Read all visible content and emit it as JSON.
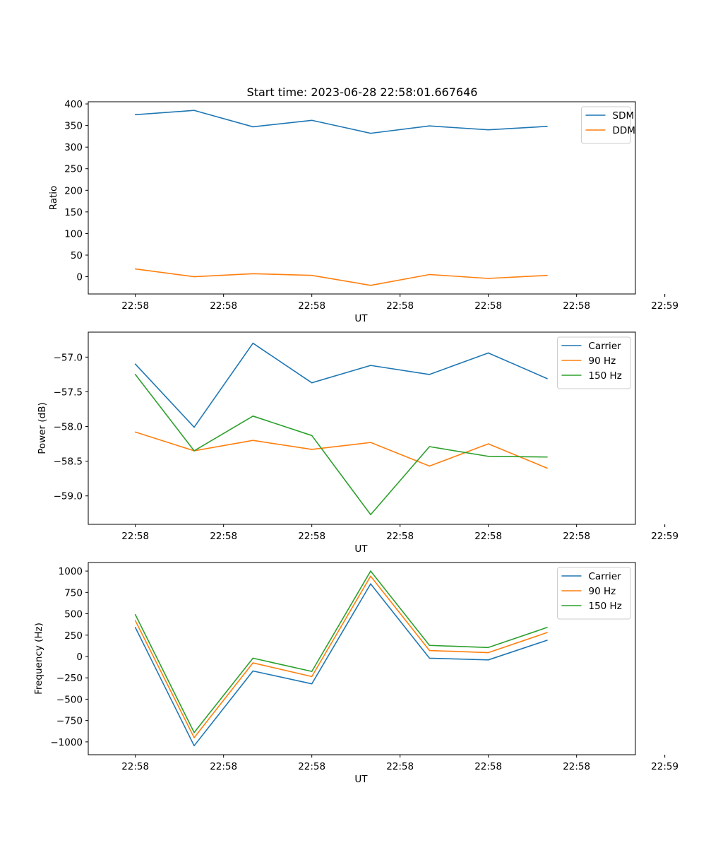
{
  "figure": {
    "title": "Start time: 2023-06-28 22:58:01.667646"
  },
  "chart_data": [
    {
      "type": "line",
      "title": "Start time: 2023-06-28 22:58:01.667646",
      "xlabel": "UT",
      "ylabel": "Ratio",
      "x_tick_labels": [
        "22:58",
        "22:58",
        "22:58",
        "22:58",
        "22:58",
        "22:58",
        "22:59"
      ],
      "xlim": [
        -0.8,
        8.5
      ],
      "ylim": [
        -40,
        405
      ],
      "y_ticks": [
        0,
        50,
        100,
        150,
        200,
        250,
        300,
        350,
        400
      ],
      "grid": false,
      "legend_position": "top-right",
      "series": [
        {
          "name": "SDM",
          "color": "#1f77b4",
          "values": [
            375,
            385,
            347,
            362,
            332,
            349,
            340,
            348
          ]
        },
        {
          "name": "DDM",
          "color": "#ff7f0e",
          "values": [
            18,
            0,
            7,
            3,
            -20,
            5,
            -4,
            3
          ]
        }
      ]
    },
    {
      "type": "line",
      "xlabel": "UT",
      "ylabel": "Power (dB)",
      "x_tick_labels": [
        "22:58",
        "22:58",
        "22:58",
        "22:58",
        "22:58",
        "22:58",
        "22:59"
      ],
      "xlim": [
        -0.8,
        8.5
      ],
      "ylim": [
        -59.41,
        -56.64
      ],
      "y_ticks": [
        -59.0,
        -58.5,
        -58.0,
        -57.5,
        -57.0
      ],
      "y_tick_labels": [
        "−59.0",
        "−58.5",
        "−58.0",
        "−57.5",
        "−57.0"
      ],
      "grid": false,
      "legend_position": "top-right",
      "series": [
        {
          "name": "Carrier",
          "color": "#1f77b4",
          "values": [
            -57.1,
            -58.01,
            -56.8,
            -57.37,
            -57.12,
            -57.25,
            -56.94,
            -57.31
          ]
        },
        {
          "name": "90 Hz",
          "color": "#ff7f0e",
          "values": [
            -58.08,
            -58.35,
            -58.2,
            -58.33,
            -58.23,
            -58.57,
            -58.25,
            -58.6
          ]
        },
        {
          "name": "150 Hz",
          "color": "#2ca02c",
          "values": [
            -57.25,
            -58.35,
            -57.85,
            -58.13,
            -59.27,
            -58.29,
            -58.43,
            -58.44
          ]
        }
      ]
    },
    {
      "type": "line",
      "xlabel": "UT",
      "ylabel": "Frequency (Hz)",
      "x_tick_labels": [
        "22:58",
        "22:58",
        "22:58",
        "22:58",
        "22:58",
        "22:58",
        "22:59"
      ],
      "xlim": [
        -0.8,
        8.5
      ],
      "ylim": [
        -1150,
        1100
      ],
      "y_ticks": [
        -1000,
        -750,
        -500,
        -250,
        0,
        250,
        500,
        750,
        1000
      ],
      "y_tick_labels": [
        "−1000",
        "−750",
        "−500",
        "−250",
        "0",
        "250",
        "500",
        "750",
        "1000"
      ],
      "grid": false,
      "legend_position": "top-right",
      "series": [
        {
          "name": "Carrier",
          "color": "#1f77b4",
          "values": [
            340,
            -1045,
            -170,
            -320,
            850,
            -20,
            -40,
            190
          ]
        },
        {
          "name": "90 Hz",
          "color": "#ff7f0e",
          "values": [
            420,
            -950,
            -75,
            -235,
            940,
            70,
            45,
            280
          ]
        },
        {
          "name": "150 Hz",
          "color": "#2ca02c",
          "values": [
            490,
            -890,
            -20,
            -175,
            1000,
            130,
            105,
            340
          ]
        }
      ]
    }
  ]
}
